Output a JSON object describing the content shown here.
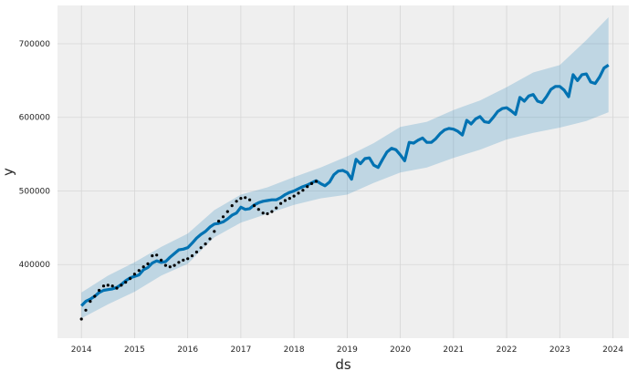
{
  "chart_data": {
    "type": "line",
    "title": "",
    "xlabel": "ds",
    "ylabel": "y",
    "xlim": [
      2013.55,
      2024.3
    ],
    "ylim": [
      300000,
      752000
    ],
    "grid": true,
    "x_ticks": [
      2014,
      2015,
      2016,
      2017,
      2018,
      2019,
      2020,
      2021,
      2022,
      2023,
      2024
    ],
    "x_tick_labels": [
      "2014",
      "2015",
      "2016",
      "2017",
      "2018",
      "2019",
      "2020",
      "2021",
      "2022",
      "2023",
      "2024"
    ],
    "y_ticks": [
      400000,
      500000,
      600000,
      700000
    ],
    "y_tick_labels": [
      "400000",
      "500000",
      "600000",
      "700000"
    ],
    "colors": {
      "forecast": "#0072B2",
      "band": "#0072B2",
      "observed": "#000000",
      "background": "#EFEFEF",
      "grid": "#D6D6D6"
    },
    "series": [
      {
        "type": "scatter",
        "x": [
          2014.0,
          2014.083,
          2014.167,
          2014.25,
          2014.333,
          2014.417,
          2014.5,
          2014.583,
          2014.667,
          2014.75,
          2014.833,
          2014.917,
          2015.0,
          2015.083,
          2015.167,
          2015.25,
          2015.333,
          2015.417,
          2015.5,
          2015.583,
          2015.667,
          2015.75,
          2015.833,
          2015.917,
          2016.0,
          2016.083,
          2016.167,
          2016.25,
          2016.333,
          2016.417,
          2016.5,
          2016.583,
          2016.667,
          2016.75,
          2016.833,
          2016.917,
          2017.0,
          2017.083,
          2017.167,
          2017.25,
          2017.333,
          2017.417,
          2017.5,
          2017.583,
          2017.667,
          2017.75,
          2017.833,
          2017.917,
          2018.0,
          2018.083,
          2018.167,
          2018.25,
          2018.333,
          2018.417
        ],
        "values": [
          326000,
          338000,
          350000,
          357000,
          365000,
          371000,
          372000,
          371000,
          368000,
          372000,
          376000,
          381000,
          387000,
          392000,
          397000,
          401000,
          412000,
          413000,
          406000,
          399000,
          397000,
          399000,
          403000,
          406000,
          408000,
          412000,
          417000,
          423000,
          428000,
          435000,
          445000,
          459000,
          465000,
          472000,
          480000,
          486000,
          490000,
          491000,
          488000,
          480000,
          475000,
          470000,
          469000,
          472000,
          477000,
          483000,
          487000,
          490000,
          493000,
          497000,
          501000,
          506000,
          510000,
          513000
        ]
      },
      {
        "type": "line",
        "x": [
          2014.0,
          2014.083,
          2014.167,
          2014.25,
          2014.333,
          2014.417,
          2014.5,
          2014.583,
          2014.667,
          2014.75,
          2014.833,
          2014.917,
          2015.0,
          2015.083,
          2015.167,
          2015.25,
          2015.333,
          2015.417,
          2015.5,
          2015.583,
          2015.667,
          2015.75,
          2015.833,
          2015.917,
          2016.0,
          2016.083,
          2016.167,
          2016.25,
          2016.333,
          2016.417,
          2016.5,
          2016.583,
          2016.667,
          2016.75,
          2016.833,
          2016.917,
          2017.0,
          2017.083,
          2017.167,
          2017.25,
          2017.333,
          2017.417,
          2017.5,
          2017.583,
          2017.667,
          2017.75,
          2017.833,
          2017.917,
          2018.0,
          2018.083,
          2018.167,
          2018.25,
          2018.333,
          2018.417,
          2018.5,
          2018.583,
          2018.667,
          2018.75,
          2018.833,
          2018.917,
          2019.0,
          2019.083,
          2019.167,
          2019.25,
          2019.333,
          2019.417,
          2019.5,
          2019.583,
          2019.667,
          2019.75,
          2019.833,
          2019.917,
          2020.0,
          2020.083,
          2020.167,
          2020.25,
          2020.333,
          2020.417,
          2020.5,
          2020.583,
          2020.667,
          2020.75,
          2020.833,
          2020.917,
          2021.0,
          2021.083,
          2021.167,
          2021.25,
          2021.333,
          2021.417,
          2021.5,
          2021.583,
          2021.667,
          2021.75,
          2021.833,
          2021.917,
          2022.0,
          2022.083,
          2022.167,
          2022.25,
          2022.333,
          2022.417,
          2022.5,
          2022.583,
          2022.667,
          2022.75,
          2022.833,
          2022.917,
          2023.0,
          2023.083,
          2023.167,
          2023.25,
          2023.333,
          2023.417,
          2023.5,
          2023.583,
          2023.667,
          2023.75,
          2023.833,
          2023.917
        ],
        "values": [
          344000,
          350000,
          353000,
          357000,
          362000,
          365000,
          366000,
          367000,
          369000,
          373000,
          378000,
          382000,
          384000,
          386000,
          393000,
          396000,
          402000,
          405000,
          403000,
          404000,
          410000,
          415000,
          420000,
          421000,
          423000,
          429000,
          436000,
          441000,
          445000,
          451000,
          455000,
          456000,
          458000,
          462000,
          467000,
          470000,
          478000,
          475000,
          476000,
          481000,
          484000,
          486000,
          487000,
          488000,
          488000,
          491000,
          495000,
          498000,
          500000,
          503000,
          506000,
          508000,
          511000,
          514000,
          510000,
          507000,
          512000,
          522000,
          527000,
          528000,
          525000,
          516000,
          543000,
          537000,
          544000,
          545000,
          535000,
          532000,
          543000,
          553000,
          558000,
          556000,
          549000,
          541000,
          566000,
          565000,
          569000,
          572000,
          566000,
          566000,
          571000,
          578000,
          583000,
          585000,
          584000,
          581000,
          576000,
          596000,
          591000,
          598000,
          601000,
          594000,
          593000,
          600000,
          608000,
          612000,
          613000,
          609000,
          604000,
          627000,
          622000,
          629000,
          631000,
          622000,
          620000,
          628000,
          638000,
          642000,
          642000,
          637000,
          628000,
          658000,
          650000,
          658000,
          659000,
          648000,
          646000,
          655000,
          667000,
          671000
        ]
      }
    ],
    "band": {
      "x": [
        2014.0,
        2014.5,
        2015.0,
        2015.5,
        2016.0,
        2016.5,
        2017.0,
        2017.5,
        2018.0,
        2018.5,
        2019.0,
        2019.5,
        2020.0,
        2020.5,
        2021.0,
        2021.5,
        2022.0,
        2022.5,
        2023.0,
        2023.5,
        2023.917
      ],
      "upper": [
        362000,
        385000,
        403000,
        424000,
        442000,
        474000,
        495000,
        505000,
        519000,
        532000,
        547000,
        565000,
        587000,
        594000,
        610000,
        623000,
        641000,
        661000,
        671000,
        705000,
        736000
      ],
      "lower": [
        327000,
        346000,
        363000,
        385000,
        401000,
        437000,
        457000,
        469000,
        481000,
        490000,
        495000,
        511000,
        525000,
        532000,
        545000,
        556000,
        570000,
        579000,
        586000,
        595000,
        607000
      ]
    }
  }
}
